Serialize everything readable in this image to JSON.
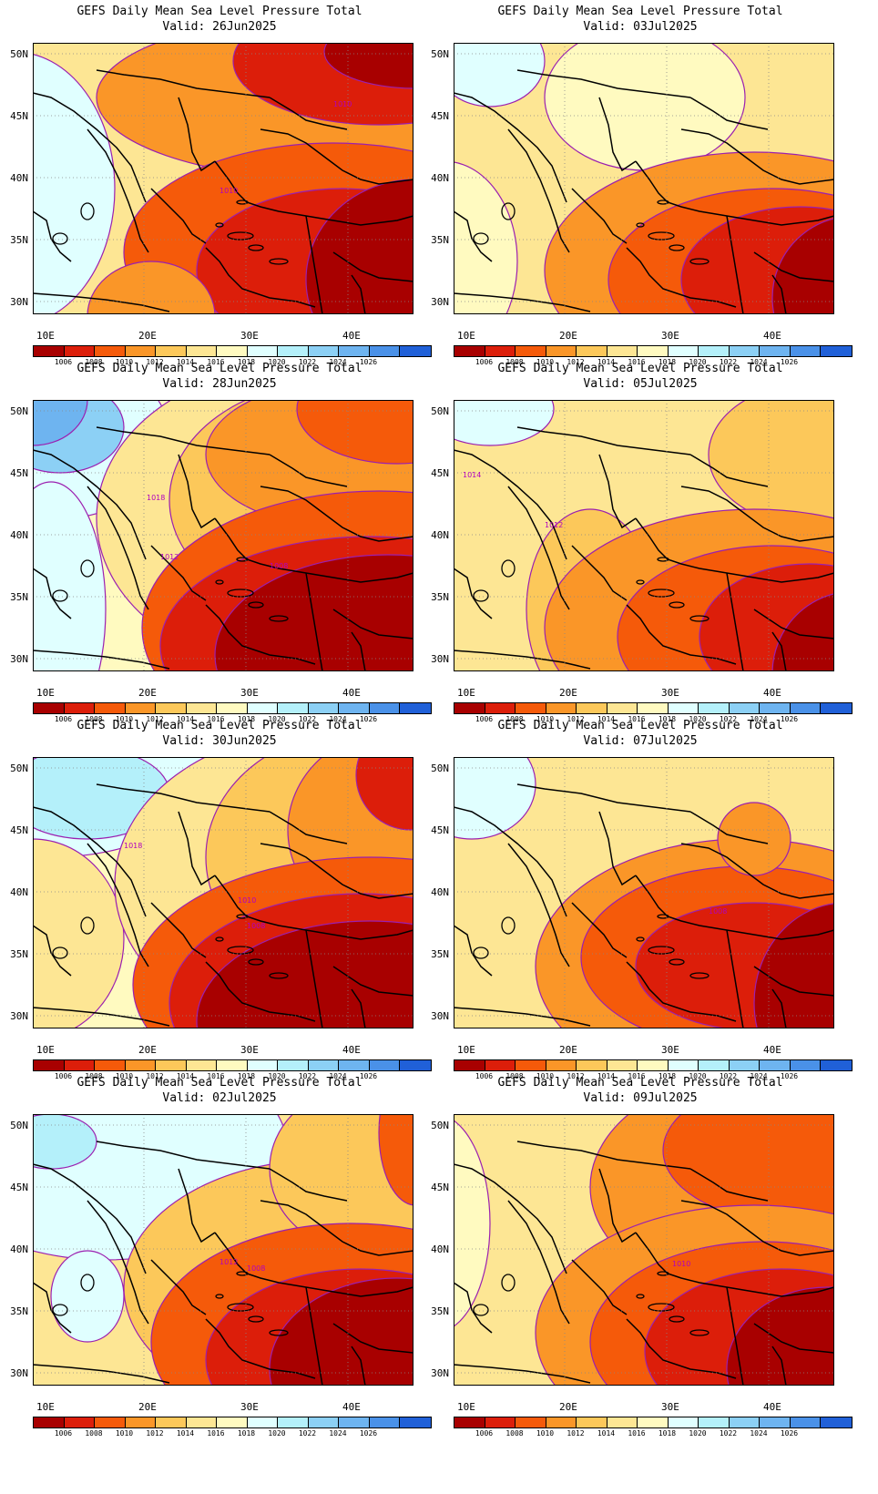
{
  "title": "GEFS Daily Mean Sea Level Pressure Total",
  "lat_ticks": [
    "50N",
    "45N",
    "40N",
    "35N",
    "30N"
  ],
  "lon_ticks": [
    "10E",
    "20E",
    "30E",
    "40E"
  ],
  "colorbar_labels": [
    "1006",
    "1008",
    "1010",
    "1012",
    "1014",
    "1016",
    "1018",
    "1020",
    "1022",
    "1024",
    "1026"
  ],
  "colorbar_colors": [
    "#a80000",
    "#dc1e0a",
    "#f55a0a",
    "#fa9628",
    "#fcc85a",
    "#fde694",
    "#fffac0",
    "#e0ffff",
    "#b4f0fa",
    "#8cd0f5",
    "#6eb4f0",
    "#4a91e8",
    "#2060d8"
  ],
  "panels": [
    {
      "valid": "Valid: 26Jun2025",
      "contour_labels": [
        "1010",
        "1010"
      ]
    },
    {
      "valid": "Valid: 03Jul2025",
      "contour_labels": []
    },
    {
      "valid": "Valid: 28Jun2025",
      "contour_labels": [
        "1018",
        "1012",
        "1008"
      ]
    },
    {
      "valid": "Valid: 05Jul2025",
      "contour_labels": [
        "1014",
        "1012"
      ]
    },
    {
      "valid": "Valid: 30Jun2025",
      "contour_labels": [
        "1018",
        "1010",
        "1008"
      ]
    },
    {
      "valid": "Valid: 07Jul2025",
      "contour_labels": [
        "1008"
      ]
    },
    {
      "valid": "Valid: 02Jul2025",
      "contour_labels": [
        "1012",
        "1008"
      ]
    },
    {
      "valid": "Valid: 09Jul2025",
      "contour_labels": [
        "1010"
      ]
    }
  ]
}
